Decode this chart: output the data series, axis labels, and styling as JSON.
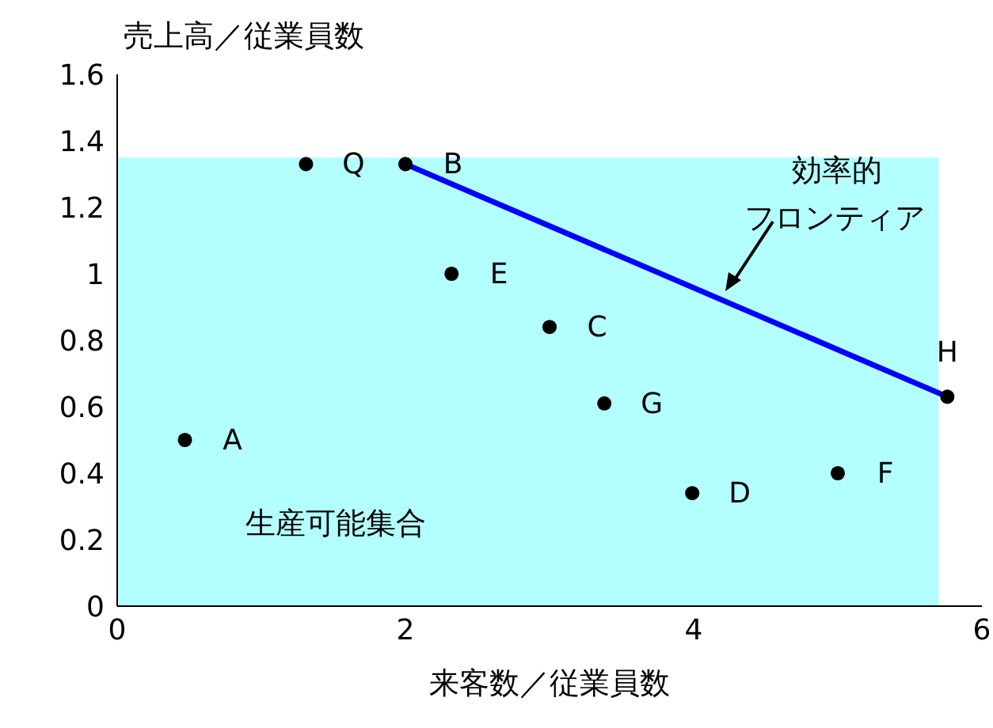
{
  "chart_data": {
    "type": "scatter",
    "xlabel": "来客数／従業員数",
    "ylabel": "売上高／従業員数",
    "xlim": [
      0,
      6
    ],
    "xticks": [
      0,
      2,
      4,
      6
    ],
    "ylim": [
      0,
      1.6
    ],
    "yticks": [
      0,
      0.2,
      0.4,
      0.6,
      0.8,
      1,
      1.2,
      1.4,
      1.6
    ],
    "grid": false,
    "legend": false,
    "series": [
      {
        "type": "area",
        "color": "#b3ffff",
        "x": [
          0,
          5.7
        ],
        "values": [
          1.35,
          1.35
        ]
      },
      {
        "type": "line",
        "color": "#0000ff",
        "x": [
          2,
          5.76
        ],
        "values": [
          1.33,
          0.63
        ]
      },
      {
        "color": "#000000",
        "marker": "circle",
        "x": [
          0.47,
          1.31,
          2,
          2.32,
          3,
          3.38,
          3.99,
          5,
          5.76
        ],
        "values": [
          0.5,
          1.33,
          1.33,
          1,
          0.84,
          0.61,
          0.34,
          0.4,
          0.63
        ]
      }
    ],
    "annotations": [
      {
        "text": "A",
        "x": 0.47,
        "y": 0.5
      },
      {
        "text": "Q",
        "x": 1.31,
        "y": 1.33
      },
      {
        "text": "B",
        "x": 2,
        "y": 1.33
      },
      {
        "text": "E",
        "x": 2.32,
        "y": 1
      },
      {
        "text": "C",
        "x": 3,
        "y": 0.84
      },
      {
        "text": "G",
        "x": 3.38,
        "y": 0.61
      },
      {
        "text": "D",
        "x": 3.99,
        "y": 0.34
      },
      {
        "text": "F",
        "x": 5,
        "y": 0.4
      },
      {
        "text": "H",
        "x": 5.76,
        "y": 0.63
      },
      "生産可能集合",
      "効率的",
      "フロンティア"
    ]
  }
}
